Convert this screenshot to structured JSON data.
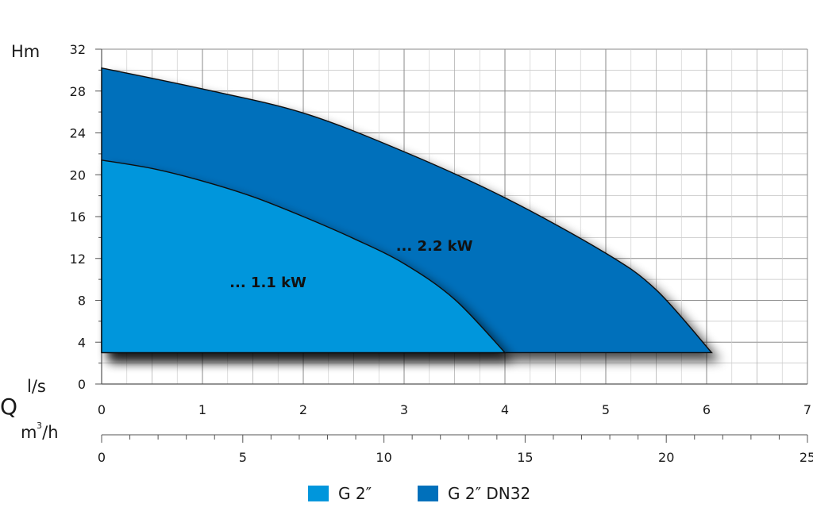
{
  "chart_data": {
    "type": "area",
    "y_axis": {
      "label": "Hm",
      "ticks": [
        0,
        4,
        8,
        12,
        16,
        20,
        24,
        28,
        32
      ],
      "range": [
        0,
        32
      ]
    },
    "x_axis_ls": {
      "unit_label": "l/s",
      "quantity_label": "Q",
      "ticks": [
        0,
        1,
        2,
        3,
        4,
        5,
        6,
        7
      ],
      "range": [
        0,
        7
      ]
    },
    "x_axis_m3h": {
      "unit_label": "m /h",
      "ticks": [
        0,
        5,
        10,
        15,
        20,
        25
      ],
      "range": [
        0,
        25
      ]
    },
    "grid": true,
    "series": [
      {
        "name": "G 2″",
        "color": "#0096dc",
        "area_label": "... 1.1 kW",
        "base_y": 3,
        "points": [
          [
            0,
            21.4
          ],
          [
            0.5,
            20.6
          ],
          [
            1,
            19.4
          ],
          [
            1.5,
            17.9
          ],
          [
            2,
            16.0
          ],
          [
            2.5,
            13.9
          ],
          [
            3,
            11.5
          ],
          [
            3.5,
            8.1
          ],
          [
            4,
            3.0
          ]
        ]
      },
      {
        "name": "G 2″ DN32",
        "color": "#0070bb",
        "area_label": "... 2.2 kW",
        "base_y": 3,
        "points": [
          [
            0,
            30.2
          ],
          [
            1,
            28.2
          ],
          [
            2,
            25.9
          ],
          [
            3,
            22.2
          ],
          [
            4,
            17.8
          ],
          [
            5,
            12.5
          ],
          [
            5.5,
            9.0
          ],
          [
            6.05,
            3.0
          ]
        ]
      }
    ],
    "legend_position": "bottom-center"
  }
}
